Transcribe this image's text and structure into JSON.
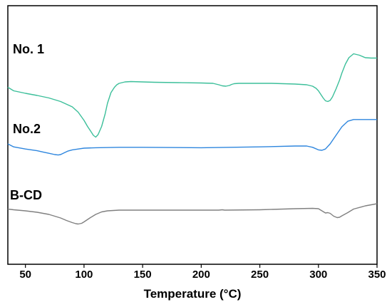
{
  "chart_data": {
    "type": "line",
    "title": "",
    "xlabel": "Temperature (°C)",
    "ylabel": "",
    "xlim": [
      35,
      350
    ],
    "x_ticks": [
      50,
      100,
      150,
      200,
      250,
      300,
      350
    ],
    "grid": false,
    "legend": "none",
    "series": [
      {
        "name": "No. 1",
        "color": "#3cbf9a",
        "x": [
          35,
          40,
          50,
          60,
          70,
          80,
          90,
          95,
          100,
          103,
          106,
          108,
          110,
          112,
          115,
          118,
          120,
          123,
          126,
          128,
          130,
          135,
          140,
          150,
          160,
          180,
          200,
          210,
          215,
          218,
          221,
          224,
          226,
          228,
          232,
          240,
          260,
          280,
          290,
          295,
          298,
          300,
          302,
          304,
          306,
          308,
          310,
          312,
          315,
          318,
          320,
          323,
          326,
          330,
          335,
          340,
          345,
          350
        ],
        "y": [
          2.55,
          2.45,
          2.38,
          2.32,
          2.25,
          2.15,
          2.0,
          1.85,
          1.62,
          1.45,
          1.3,
          1.2,
          1.15,
          1.22,
          1.45,
          1.8,
          2.1,
          2.4,
          2.55,
          2.62,
          2.66,
          2.7,
          2.71,
          2.7,
          2.69,
          2.68,
          2.67,
          2.66,
          2.62,
          2.59,
          2.58,
          2.6,
          2.63,
          2.65,
          2.66,
          2.66,
          2.66,
          2.64,
          2.62,
          2.58,
          2.52,
          2.45,
          2.35,
          2.25,
          2.17,
          2.15,
          2.18,
          2.28,
          2.5,
          2.75,
          2.95,
          3.2,
          3.38,
          3.49,
          3.45,
          3.38,
          3.37,
          3.37
        ]
      },
      {
        "name": "No.2",
        "color": "#2e86de",
        "x": [
          35,
          40,
          50,
          60,
          65,
          70,
          75,
          78,
          80,
          83,
          86,
          90,
          95,
          100,
          110,
          130,
          150,
          200,
          250,
          280,
          290,
          295,
          300,
          303,
          306,
          310,
          315,
          320,
          325,
          330,
          340,
          350
        ],
        "y": [
          1.05,
          0.98,
          0.93,
          0.89,
          0.86,
          0.83,
          0.8,
          0.79,
          0.8,
          0.84,
          0.88,
          0.91,
          0.93,
          0.95,
          0.96,
          0.97,
          0.97,
          0.96,
          0.98,
          1.0,
          1.0,
          0.97,
          0.91,
          0.9,
          0.93,
          1.05,
          1.25,
          1.45,
          1.58,
          1.62,
          1.62,
          1.62
        ]
      },
      {
        "name": "B-CD",
        "color": "#808080",
        "x": [
          35,
          40,
          50,
          60,
          70,
          80,
          85,
          90,
          93,
          95,
          98,
          100,
          105,
          110,
          115,
          120,
          125,
          130,
          150,
          200,
          215,
          218,
          220,
          250,
          280,
          295,
          300,
          303,
          306,
          308,
          310,
          313,
          316,
          318,
          320,
          325,
          330,
          340,
          350
        ],
        "y": [
          0.05,
          0.03,
          0.0,
          -0.04,
          -0.1,
          -0.2,
          -0.27,
          -0.33,
          -0.36,
          -0.37,
          -0.35,
          -0.31,
          -0.2,
          -0.1,
          -0.03,
          0.0,
          0.01,
          0.02,
          0.02,
          0.02,
          0.02,
          0.03,
          0.02,
          0.03,
          0.06,
          0.07,
          0.06,
          0.0,
          -0.06,
          -0.05,
          -0.07,
          -0.15,
          -0.19,
          -0.18,
          -0.14,
          -0.05,
          0.05,
          0.14,
          0.2
        ]
      }
    ],
    "label_positions": {
      "No. 1": 35,
      "No.2": 35,
      "B-CD": 35
    }
  }
}
